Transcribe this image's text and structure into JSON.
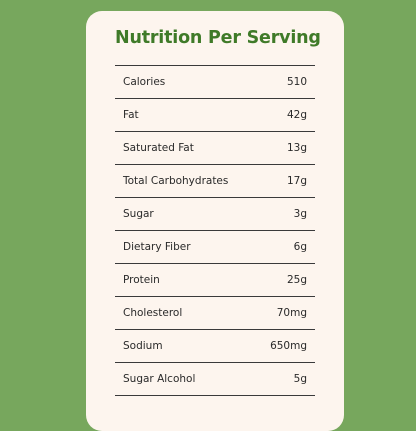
{
  "title": "Nutrition Per Serving",
  "rows": [
    {
      "label": "Calories",
      "value": "510"
    },
    {
      "label": "Fat",
      "value": "42g"
    },
    {
      "label": "Saturated Fat",
      "value": "13g"
    },
    {
      "label": "Total Carbohydrates",
      "value": "17g"
    },
    {
      "label": "Sugar",
      "value": "3g"
    },
    {
      "label": "Dietary Fiber",
      "value": "6g"
    },
    {
      "label": "Protein",
      "value": "25g"
    },
    {
      "label": "Cholesterol",
      "value": "70mg"
    },
    {
      "label": "Sodium",
      "value": "650mg"
    },
    {
      "label": "Sugar Alcohol",
      "value": "5g"
    }
  ],
  "colors": {
    "background": "#77a75d",
    "card": "#fdf5ee",
    "title": "#3f7a28",
    "text": "#2a2a2a",
    "divider": "#3a3a3a"
  }
}
